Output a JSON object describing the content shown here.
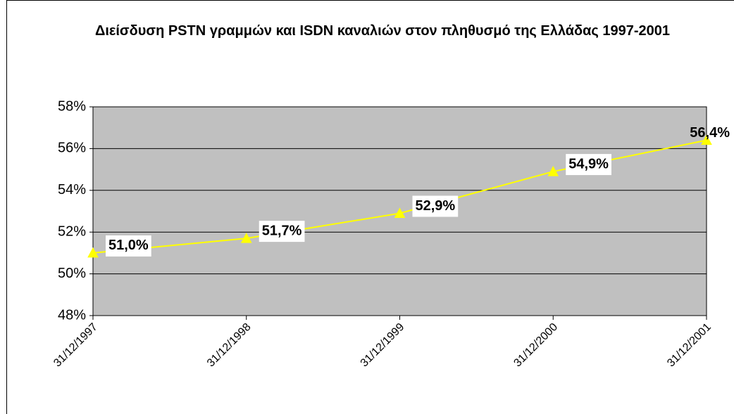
{
  "chart_data": {
    "type": "line",
    "title": "Διείσδυση PSTN γραμμών και ISDN καναλιών στον πληθυσμό της Ελλάδας 1997-2001",
    "categories": [
      "31/12/1997",
      "31/12/1998",
      "31/12/1999",
      "31/12/2000",
      "31/12/2001"
    ],
    "series": [
      {
        "color": "#ffff00",
        "values": [
          51.0,
          51.7,
          52.9,
          54.9,
          56.4
        ],
        "value_labels": [
          "51,0%",
          "51,7%",
          "52,9%",
          "54,9%",
          "56,4%"
        ]
      }
    ],
    "ylim": [
      48,
      58
    ],
    "yticks": [
      {
        "value": 48,
        "label": "48%"
      },
      {
        "value": 50,
        "label": "50%"
      },
      {
        "value": 52,
        "label": "52%"
      },
      {
        "value": 54,
        "label": "54%"
      },
      {
        "value": 56,
        "label": "56%"
      },
      {
        "value": 58,
        "label": "58%"
      }
    ],
    "grid": true,
    "plot_background": "#c0c0c0"
  }
}
